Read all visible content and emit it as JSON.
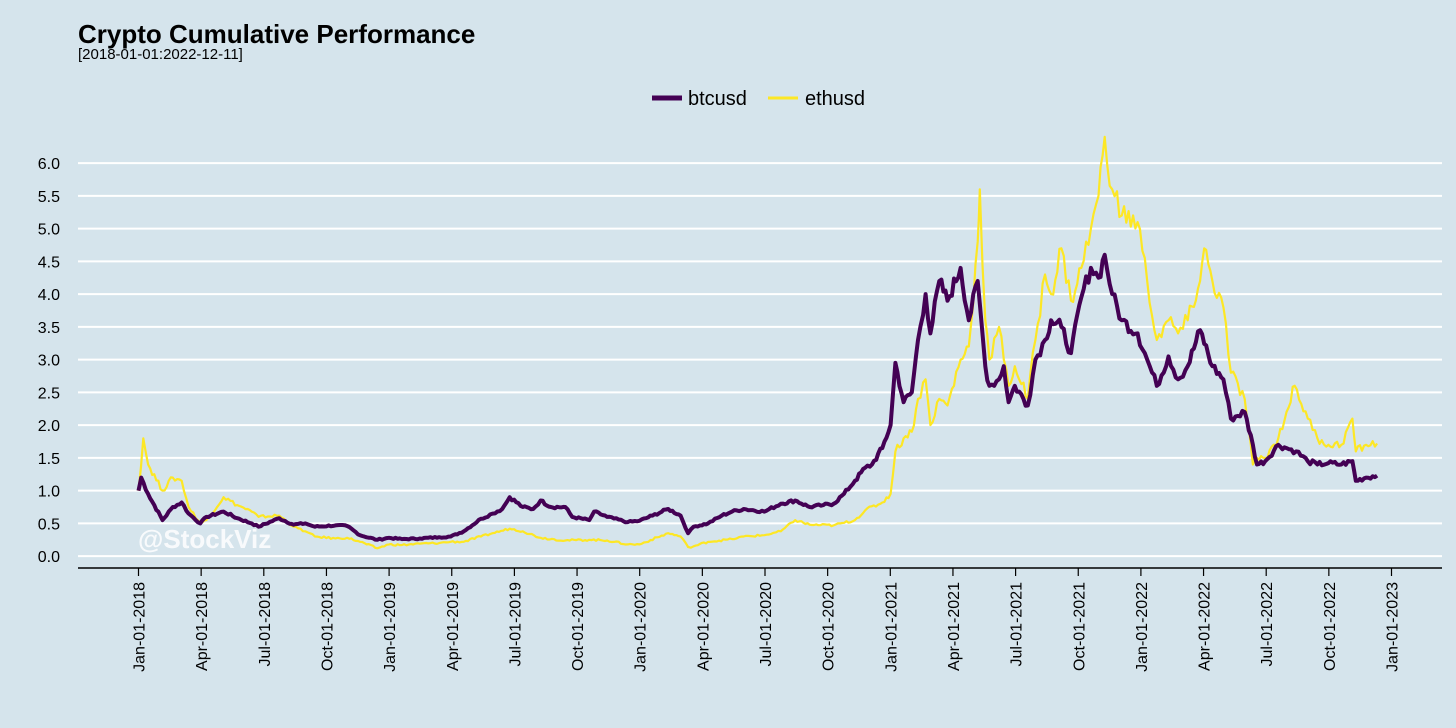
{
  "colors": {
    "background": "#d5e4ec",
    "grid": "#ffffff",
    "btcusd": "#440154",
    "ethusd": "#fde725"
  },
  "watermark": "@StockViz",
  "chart_data": {
    "type": "line",
    "title": "Crypto Cumulative Performance",
    "subtitle": "[2018-01-01:2022-12-11]",
    "xlabel": "",
    "ylabel": "",
    "ylim": [
      -0.15,
      6.2
    ],
    "yticks": [
      "0.0",
      "0.5",
      "1.0",
      "1.5",
      "2.0",
      "2.5",
      "3.0",
      "3.5",
      "4.0",
      "4.5",
      "5.0",
      "5.5",
      "6.0"
    ],
    "xticks": [
      "Jan-01-2018",
      "Apr-01-2018",
      "Jul-01-2018",
      "Oct-01-2018",
      "Jan-01-2019",
      "Apr-01-2019",
      "Jul-01-2019",
      "Oct-01-2019",
      "Jan-01-2020",
      "Apr-01-2020",
      "Jul-01-2020",
      "Oct-01-2020",
      "Jan-01-2021",
      "Apr-01-2021",
      "Jul-01-2021",
      "Oct-01-2021",
      "Jan-01-2022",
      "Apr-01-2022",
      "Jul-01-2022",
      "Oct-01-2022",
      "Jan-01-2023"
    ],
    "grid": true,
    "legend_position": "top",
    "series": [
      {
        "name": "btcusd",
        "x": [
          "2018-01-01",
          "2018-01-05",
          "2018-01-15",
          "2018-02-05",
          "2018-02-20",
          "2018-03-05",
          "2018-03-15",
          "2018-04-01",
          "2018-04-10",
          "2018-05-05",
          "2018-05-25",
          "2018-06-15",
          "2018-06-25",
          "2018-07-25",
          "2018-08-15",
          "2018-09-01",
          "2018-09-15",
          "2018-10-15",
          "2018-11-01",
          "2018-11-20",
          "2018-12-15",
          "2019-01-01",
          "2019-01-20",
          "2019-02-15",
          "2019-03-15",
          "2019-04-01",
          "2019-04-20",
          "2019-05-15",
          "2019-06-01",
          "2019-06-15",
          "2019-06-26",
          "2019-07-15",
          "2019-07-30",
          "2019-08-10",
          "2019-08-25",
          "2019-09-15",
          "2019-09-25",
          "2019-10-20",
          "2019-10-27",
          "2019-11-15",
          "2019-12-15",
          "2020-01-01",
          "2020-01-20",
          "2020-02-12",
          "2020-03-01",
          "2020-03-12",
          "2020-03-20",
          "2020-04-10",
          "2020-04-30",
          "2020-05-15",
          "2020-06-01",
          "2020-07-01",
          "2020-07-25",
          "2020-08-15",
          "2020-09-05",
          "2020-09-25",
          "2020-10-10",
          "2020-10-25",
          "2020-11-10",
          "2020-11-25",
          "2020-12-05",
          "2020-12-20",
          "2021-01-01",
          "2021-01-08",
          "2021-01-20",
          "2021-02-01",
          "2021-02-10",
          "2021-02-21",
          "2021-02-28",
          "2021-03-13",
          "2021-03-25",
          "2021-04-13",
          "2021-04-25",
          "2021-05-08",
          "2021-05-19",
          "2021-05-25",
          "2021-06-08",
          "2021-06-15",
          "2021-06-22",
          "2021-07-01",
          "2021-07-20",
          "2021-07-31",
          "2021-08-14",
          "2021-08-23",
          "2021-09-07",
          "2021-09-21",
          "2021-10-06",
          "2021-10-20",
          "2021-10-31",
          "2021-11-09",
          "2021-11-20",
          "2021-12-04",
          "2021-12-27",
          "2022-01-10",
          "2022-01-24",
          "2022-02-10",
          "2022-02-24",
          "2022-03-10",
          "2022-03-28",
          "2022-04-15",
          "2022-05-01",
          "2022-05-12",
          "2022-06-01",
          "2022-06-13",
          "2022-06-19",
          "2022-07-01",
          "2022-07-20",
          "2022-08-01",
          "2022-08-15",
          "2022-09-01",
          "2022-09-15",
          "2022-10-01",
          "2022-10-20",
          "2022-11-05",
          "2022-11-10",
          "2022-11-25",
          "2022-12-11"
        ],
        "values": [
          1.0,
          1.2,
          0.95,
          0.55,
          0.75,
          0.82,
          0.65,
          0.5,
          0.6,
          0.68,
          0.58,
          0.5,
          0.45,
          0.58,
          0.48,
          0.5,
          0.45,
          0.47,
          0.46,
          0.32,
          0.25,
          0.28,
          0.26,
          0.27,
          0.29,
          0.3,
          0.38,
          0.57,
          0.65,
          0.72,
          0.9,
          0.75,
          0.72,
          0.85,
          0.75,
          0.75,
          0.6,
          0.55,
          0.68,
          0.6,
          0.52,
          0.54,
          0.62,
          0.72,
          0.62,
          0.35,
          0.45,
          0.5,
          0.62,
          0.68,
          0.72,
          0.68,
          0.8,
          0.85,
          0.75,
          0.78,
          0.8,
          0.95,
          1.15,
          1.35,
          1.4,
          1.65,
          2.0,
          2.95,
          2.35,
          2.5,
          3.3,
          4.0,
          3.4,
          4.2,
          3.9,
          4.4,
          3.6,
          4.2,
          2.9,
          2.6,
          2.7,
          2.9,
          2.35,
          2.6,
          2.3,
          3.0,
          3.3,
          3.6,
          3.5,
          3.1,
          3.95,
          4.4,
          4.25,
          4.6,
          4.0,
          3.6,
          3.4,
          3.0,
          2.6,
          3.05,
          2.7,
          2.9,
          3.45,
          2.9,
          2.7,
          2.1,
          2.2,
          1.7,
          1.4,
          1.45,
          1.7,
          1.65,
          1.6,
          1.45,
          1.4,
          1.42,
          1.4,
          1.45,
          1.15,
          1.2,
          1.23
        ]
      },
      {
        "name": "ethusd",
        "x": [
          "2018-01-01",
          "2018-01-08",
          "2018-01-15",
          "2018-02-05",
          "2018-02-20",
          "2018-03-05",
          "2018-03-15",
          "2018-04-01",
          "2018-04-10",
          "2018-05-05",
          "2018-05-25",
          "2018-06-15",
          "2018-06-25",
          "2018-07-25",
          "2018-08-15",
          "2018-09-01",
          "2018-09-15",
          "2018-10-15",
          "2018-11-01",
          "2018-11-20",
          "2018-12-15",
          "2019-01-01",
          "2019-01-20",
          "2019-02-15",
          "2019-03-15",
          "2019-04-01",
          "2019-04-20",
          "2019-05-15",
          "2019-06-01",
          "2019-06-26",
          "2019-07-15",
          "2019-08-10",
          "2019-09-15",
          "2019-10-20",
          "2019-11-15",
          "2019-12-15",
          "2020-01-01",
          "2020-02-12",
          "2020-03-01",
          "2020-03-12",
          "2020-03-20",
          "2020-04-10",
          "2020-05-15",
          "2020-06-01",
          "2020-07-01",
          "2020-07-25",
          "2020-08-15",
          "2020-09-05",
          "2020-10-10",
          "2020-11-10",
          "2020-11-25",
          "2020-12-20",
          "2021-01-01",
          "2021-01-08",
          "2021-01-20",
          "2021-02-01",
          "2021-02-10",
          "2021-02-21",
          "2021-02-28",
          "2021-03-13",
          "2021-03-25",
          "2021-04-13",
          "2021-04-25",
          "2021-05-08",
          "2021-05-11",
          "2021-05-19",
          "2021-05-25",
          "2021-06-08",
          "2021-06-15",
          "2021-06-22",
          "2021-07-01",
          "2021-07-20",
          "2021-07-31",
          "2021-08-14",
          "2021-08-23",
          "2021-09-07",
          "2021-09-21",
          "2021-10-06",
          "2021-10-20",
          "2021-10-31",
          "2021-11-09",
          "2021-11-20",
          "2021-12-04",
          "2021-12-27",
          "2022-01-10",
          "2022-01-24",
          "2022-02-10",
          "2022-02-24",
          "2022-03-10",
          "2022-03-28",
          "2022-04-03",
          "2022-04-15",
          "2022-05-01",
          "2022-05-12",
          "2022-06-01",
          "2022-06-13",
          "2022-06-19",
          "2022-07-01",
          "2022-07-20",
          "2022-08-01",
          "2022-08-13",
          "2022-09-01",
          "2022-09-15",
          "2022-10-01",
          "2022-10-20",
          "2022-11-05",
          "2022-11-10",
          "2022-11-25",
          "2022-12-11"
        ],
        "values": [
          1.0,
          1.8,
          1.4,
          1.0,
          1.2,
          1.15,
          0.75,
          0.5,
          0.55,
          0.9,
          0.78,
          0.68,
          0.6,
          0.62,
          0.45,
          0.38,
          0.3,
          0.27,
          0.28,
          0.22,
          0.12,
          0.18,
          0.17,
          0.19,
          0.2,
          0.22,
          0.22,
          0.3,
          0.35,
          0.42,
          0.38,
          0.28,
          0.24,
          0.25,
          0.24,
          0.18,
          0.18,
          0.35,
          0.3,
          0.14,
          0.15,
          0.22,
          0.26,
          0.3,
          0.32,
          0.38,
          0.55,
          0.48,
          0.47,
          0.55,
          0.7,
          0.82,
          0.95,
          1.6,
          1.8,
          1.9,
          2.4,
          2.7,
          2.0,
          2.4,
          2.3,
          3.0,
          3.2,
          4.8,
          5.6,
          3.6,
          3.0,
          3.5,
          3.0,
          2.6,
          2.9,
          2.4,
          3.3,
          4.3,
          4.0,
          4.7,
          3.9,
          4.4,
          5.0,
          5.5,
          6.4,
          5.6,
          5.2,
          5.1,
          4.2,
          3.3,
          3.6,
          3.4,
          3.6,
          4.2,
          4.7,
          4.2,
          3.8,
          2.8,
          2.4,
          1.4,
          1.5,
          1.5,
          1.8,
          2.2,
          2.6,
          2.1,
          1.8,
          1.7,
          1.7,
          2.1,
          1.6,
          1.7,
          1.72
        ]
      }
    ]
  }
}
